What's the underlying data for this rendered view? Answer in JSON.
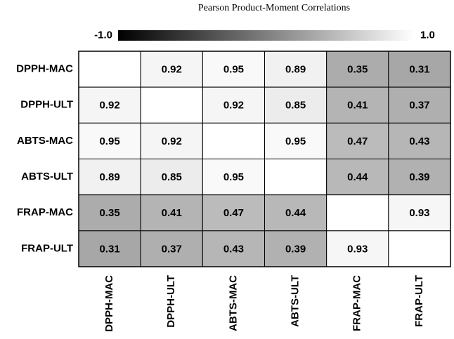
{
  "chart_data": {
    "type": "heatmap",
    "title": "Pearson Product-Moment Correlations",
    "rows": [
      "DPPH-MAC",
      "DPPH-ULT",
      "ABTS-MAC",
      "ABTS-ULT",
      "FRAP-MAC",
      "FRAP-ULT"
    ],
    "columns": [
      "DPPH-MAC",
      "DPPH-ULT",
      "ABTS-MAC",
      "ABTS-ULT",
      "FRAP-MAC",
      "FRAP-ULT"
    ],
    "values": [
      [
        null,
        0.92,
        0.95,
        0.89,
        0.35,
        0.31
      ],
      [
        0.92,
        null,
        0.92,
        0.85,
        0.41,
        0.37
      ],
      [
        0.95,
        0.92,
        null,
        0.95,
        0.47,
        0.43
      ],
      [
        0.89,
        0.85,
        0.95,
        null,
        0.44,
        0.39
      ],
      [
        0.35,
        0.41,
        0.47,
        0.44,
        null,
        0.93
      ],
      [
        0.31,
        0.37,
        0.43,
        0.39,
        0.93,
        null
      ]
    ],
    "clim": [
      -1,
      1
    ],
    "cticks": [
      {
        "value": -1,
        "label": "-1.0"
      },
      {
        "value": 1,
        "label": "1.0"
      }
    ],
    "colormap": [
      "#000000",
      "#ffffff"
    ]
  }
}
